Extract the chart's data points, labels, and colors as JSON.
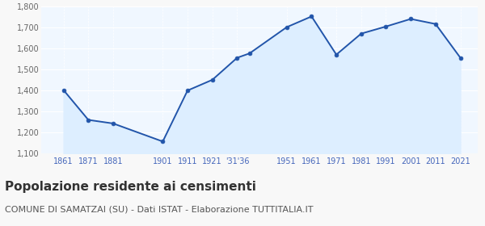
{
  "years": [
    1861,
    1871,
    1881,
    1901,
    1911,
    1921,
    1931,
    1936,
    1951,
    1961,
    1971,
    1981,
    1991,
    2001,
    2011,
    2021
  ],
  "values": [
    1403,
    1261,
    1244,
    1158,
    1401,
    1452,
    1557,
    1578,
    1703,
    1754,
    1572,
    1672,
    1706,
    1742,
    1718,
    1557
  ],
  "line_color": "#2255aa",
  "fill_color": "#ddeeff",
  "marker_color": "#2255aa",
  "plot_bg_color": "#f0f7ff",
  "fig_bg_color": "#f8f8f8",
  "grid_color": "#ffffff",
  "ylim": [
    1100,
    1800
  ],
  "yticks": [
    1100,
    1200,
    1300,
    1400,
    1500,
    1600,
    1700,
    1800
  ],
  "title": "Popolazione residente ai censimenti",
  "subtitle": "COMUNE DI SAMATZAI (SU) - Dati ISTAT - Elaborazione TUTTITALIA.IT",
  "title_fontsize": 11,
  "subtitle_fontsize": 8,
  "x_tick_positions": [
    1861,
    1871,
    1881,
    1901,
    1911,
    1921,
    1931,
    1951,
    1961,
    1971,
    1981,
    1991,
    2001,
    2011,
    2021
  ],
  "x_tick_labels": [
    "1861",
    "1871",
    "1881",
    "1901",
    "1911",
    "1921",
    "'31'36",
    "1951",
    "1961",
    "1971",
    "1981",
    "1991",
    "2001",
    "2011",
    "2021"
  ],
  "axis_label_color": "#4466bb",
  "ytick_color": "#666666"
}
